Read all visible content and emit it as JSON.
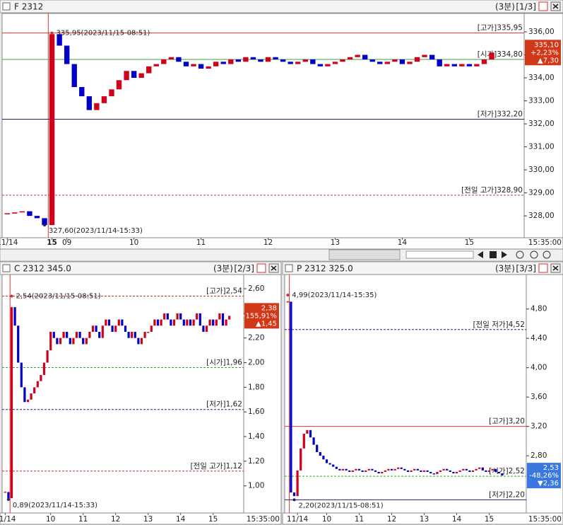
{
  "chart_data": [
    {
      "type": "candlestick",
      "title": "F 2312",
      "interval": "(3분)",
      "page": "[1/3]",
      "categories": [
        "11/14",
        null,
        null,
        null,
        null,
        null,
        "15",
        null,
        "09",
        null,
        null,
        null,
        null,
        null,
        null,
        null,
        null,
        "10",
        null,
        null,
        null,
        null,
        null,
        null,
        null,
        null,
        "11",
        null,
        null,
        null,
        null,
        null,
        null,
        null,
        null,
        "12",
        null,
        null,
        null,
        null,
        null,
        null,
        null,
        null,
        "13",
        null,
        null,
        null,
        null,
        null,
        null,
        null,
        null,
        "14",
        null,
        null,
        null,
        null,
        null,
        null,
        null,
        null,
        "15",
        null,
        null,
        null
      ],
      "values": [
        328.1,
        328.15,
        328.2,
        328.0,
        327.9,
        327.6,
        335.9,
        335.4,
        334.6,
        333.6,
        333.2,
        332.6,
        332.9,
        333.2,
        333.5,
        333.9,
        334.3,
        334.0,
        334.2,
        334.5,
        334.6,
        334.8,
        334.9,
        334.7,
        334.5,
        334.6,
        334.4,
        334.5,
        334.7,
        334.6,
        334.8,
        334.7,
        334.9,
        334.8,
        334.7,
        334.9,
        334.8,
        334.7,
        334.6,
        334.7,
        334.8,
        334.6,
        334.5,
        334.6,
        334.7,
        334.8,
        334.9,
        335.0,
        334.8,
        334.7,
        334.6,
        334.7,
        334.8,
        334.6,
        334.7,
        334.9,
        335.0,
        334.8,
        334.5,
        334.6,
        334.5,
        334.6,
        334.5,
        334.6,
        334.8,
        335.1
      ],
      "ylim": [
        327.05,
        336.8
      ],
      "yticks": [
        {
          "value": 328,
          "label": "328,00"
        },
        {
          "value": 329,
          "label": "329,00"
        },
        {
          "value": 330,
          "label": "330,00"
        },
        {
          "value": 331,
          "label": "331,00"
        },
        {
          "value": 332,
          "label": "332,00"
        },
        {
          "value": 333,
          "label": "333,00"
        },
        {
          "value": 334,
          "label": "334,00"
        },
        {
          "value": 335,
          "label": "335,00"
        },
        {
          "value": 336,
          "label": "336,00"
        }
      ],
      "up_color": "#d0021b",
      "down_color": "#0000c8",
      "ref_lines": [
        {
          "label": "[고가]335,95",
          "value": 335.95,
          "color": "#e03030",
          "style": "solid"
        },
        {
          "label": "[시가]334,80",
          "value": 334.8,
          "color": "#40a040",
          "style": "solid"
        },
        {
          "label": "[저가]332,20",
          "value": 332.2,
          "color": "#202070",
          "style": "solid"
        },
        {
          "label": "[전일 고가]328,90",
          "value": 328.9,
          "color": "#d03030",
          "style": "dashed"
        }
      ],
      "current": {
        "value": 335.1,
        "label": "335,10",
        "change_pct": "+2,23%",
        "change": "▲7,30",
        "box_color": "#d03818"
      },
      "annotations": [
        {
          "text": "335,95(2023/11/15-08:51)",
          "value": 335.95,
          "color": "#d03030"
        },
        {
          "text": "327,60(2023/11/14-15:33)",
          "value": 327.6,
          "color": "#202070"
        }
      ],
      "x_end_label": "15:35:00"
    },
    {
      "type": "candlestick",
      "title": "C 2312 345.0",
      "interval": "(3분)",
      "page": "[2/3]",
      "categories": [
        "11/14",
        null,
        null,
        null,
        null,
        null,
        null,
        null,
        null,
        null,
        null,
        null,
        null,
        null,
        "10",
        null,
        null,
        null,
        null,
        null,
        null,
        null,
        null,
        null,
        "11",
        null,
        null,
        null,
        null,
        null,
        null,
        null,
        null,
        null,
        "12",
        null,
        null,
        null,
        null,
        null,
        null,
        null,
        null,
        null,
        "13",
        null,
        null,
        null,
        null,
        null,
        null,
        null,
        null,
        null,
        "14",
        null,
        null,
        null,
        null,
        null,
        null,
        null,
        null,
        null,
        "15",
        null,
        null,
        null,
        null,
        null
      ],
      "values": [
        0.95,
        0.9,
        2.45,
        2.3,
        2.0,
        1.8,
        1.68,
        1.7,
        1.75,
        1.8,
        1.85,
        1.9,
        2.0,
        2.1,
        2.25,
        2.2,
        2.15,
        2.2,
        2.25,
        2.2,
        2.15,
        2.2,
        2.25,
        2.2,
        2.15,
        2.2,
        2.25,
        2.3,
        2.25,
        2.2,
        2.3,
        2.35,
        2.3,
        2.25,
        2.3,
        2.35,
        2.3,
        2.25,
        2.2,
        2.25,
        2.2,
        2.15,
        2.2,
        2.25,
        2.25,
        2.3,
        2.35,
        2.3,
        2.35,
        2.4,
        2.35,
        2.3,
        2.35,
        2.4,
        2.35,
        2.3,
        2.35,
        2.3,
        2.35,
        2.4,
        2.3,
        2.25,
        2.3,
        2.35,
        2.3,
        2.35,
        2.4,
        2.3,
        2.35,
        2.38
      ],
      "ylim": [
        0.78,
        2.715
      ],
      "yticks": [
        {
          "value": 1.0,
          "label": "1,00"
        },
        {
          "value": 1.2,
          "label": "1,20"
        },
        {
          "value": 1.4,
          "label": "1,40"
        },
        {
          "value": 1.6,
          "label": "1,60"
        },
        {
          "value": 1.8,
          "label": "1,80"
        },
        {
          "value": 2.0,
          "label": "2,00"
        },
        {
          "value": 2.2,
          "label": "2,20"
        },
        {
          "value": 2.4,
          "label": "2,40"
        },
        {
          "value": 2.6,
          "label": "2,60"
        }
      ],
      "up_color": "#d0021b",
      "down_color": "#0000c8",
      "ref_lines": [
        {
          "label": "[고가]2,54",
          "value": 2.54,
          "color": "#d03030",
          "style": "dashed"
        },
        {
          "label": "[시가]1,96",
          "value": 1.96,
          "color": "#40a040",
          "style": "dashed"
        },
        {
          "label": "[저가]1,62",
          "value": 1.62,
          "color": "#202070",
          "style": "dashed"
        },
        {
          "label": "[전일 고가]1,12",
          "value": 1.12,
          "color": "#d03030",
          "style": "dashed"
        }
      ],
      "current": {
        "value": 2.38,
        "label": "2,38",
        "change_pct": "+155,91%",
        "change": "▲1,45",
        "box_color": "#d03818"
      },
      "annotations": [
        {
          "text": "2,54(2023/11/15-08:51)",
          "value": 2.54,
          "color": "#d03030"
        },
        {
          "text": "0,89(2023/11/14-15:33)",
          "value": 0.89,
          "color": "#202070"
        }
      ],
      "x_end_label": "15:35:00"
    },
    {
      "type": "candlestick",
      "title": "P 2312 325.0",
      "interval": "(3분)",
      "page": "[3/3]",
      "categories": [
        null,
        null,
        null,
        "11/14",
        null,
        null,
        null,
        null,
        null,
        null,
        null,
        null,
        "10",
        null,
        null,
        null,
        null,
        null,
        null,
        null,
        null,
        null,
        "11",
        null,
        null,
        null,
        null,
        null,
        null,
        null,
        null,
        null,
        "12",
        null,
        null,
        null,
        null,
        null,
        null,
        null,
        null,
        null,
        "13",
        null,
        null,
        null,
        null,
        null,
        null,
        null,
        null,
        null,
        "14",
        null,
        null,
        null,
        null,
        null,
        null,
        null,
        null,
        null,
        "15",
        null,
        null,
        null,
        null
      ],
      "values": [
        4.9,
        2.3,
        2.25,
        2.6,
        2.9,
        3.1,
        3.15,
        3.05,
        2.95,
        2.85,
        2.8,
        2.75,
        2.7,
        2.68,
        2.65,
        2.62,
        2.6,
        2.62,
        2.6,
        2.58,
        2.6,
        2.62,
        2.6,
        2.58,
        2.6,
        2.62,
        2.6,
        2.58,
        2.56,
        2.58,
        2.6,
        2.62,
        2.6,
        2.62,
        2.64,
        2.62,
        2.6,
        2.58,
        2.6,
        2.62,
        2.6,
        2.58,
        2.6,
        2.58,
        2.56,
        2.55,
        2.58,
        2.6,
        2.62,
        2.6,
        2.58,
        2.56,
        2.58,
        2.6,
        2.62,
        2.6,
        2.58,
        2.6,
        2.62,
        2.64,
        2.6,
        2.58,
        2.6,
        2.62,
        2.58,
        2.56,
        2.53
      ],
      "ylim": [
        2.02,
        5.27
      ],
      "yticks": [
        {
          "value": 2.8,
          "label": "2,80"
        },
        {
          "value": 3.2,
          "label": "3,20"
        },
        {
          "value": 3.6,
          "label": "3,60"
        },
        {
          "value": 4.0,
          "label": "4,00"
        },
        {
          "value": 4.4,
          "label": "4,40"
        },
        {
          "value": 4.8,
          "label": "4,80"
        }
      ],
      "up_color": "#d0021b",
      "down_color": "#0000c8",
      "ref_lines": [
        {
          "label": "[전일 저가]4,52",
          "value": 4.52,
          "color": "#202070",
          "style": "dashed"
        },
        {
          "label": "[고가]3,20",
          "value": 3.2,
          "color": "#e03030",
          "style": "solid"
        },
        {
          "label": "[시가]2,52",
          "value": 2.52,
          "color": "#40a040",
          "style": "dashed"
        },
        {
          "label": "[저가]2,20",
          "value": 2.2,
          "color": "#202070",
          "style": "solid"
        }
      ],
      "current": {
        "value": 2.53,
        "label": "2,53",
        "change_pct": "-48,26%",
        "change": "▼2,36",
        "box_color": "#3a78e0"
      },
      "annotations": [
        {
          "text": "4,99(2023/11/14-15:35)",
          "value": 4.99,
          "color": "#d03030"
        },
        {
          "text": "2,20(2023/11/15-08:51)",
          "value": 2.2,
          "color": "#202070"
        }
      ],
      "x_end_label": "15:35:00"
    }
  ]
}
